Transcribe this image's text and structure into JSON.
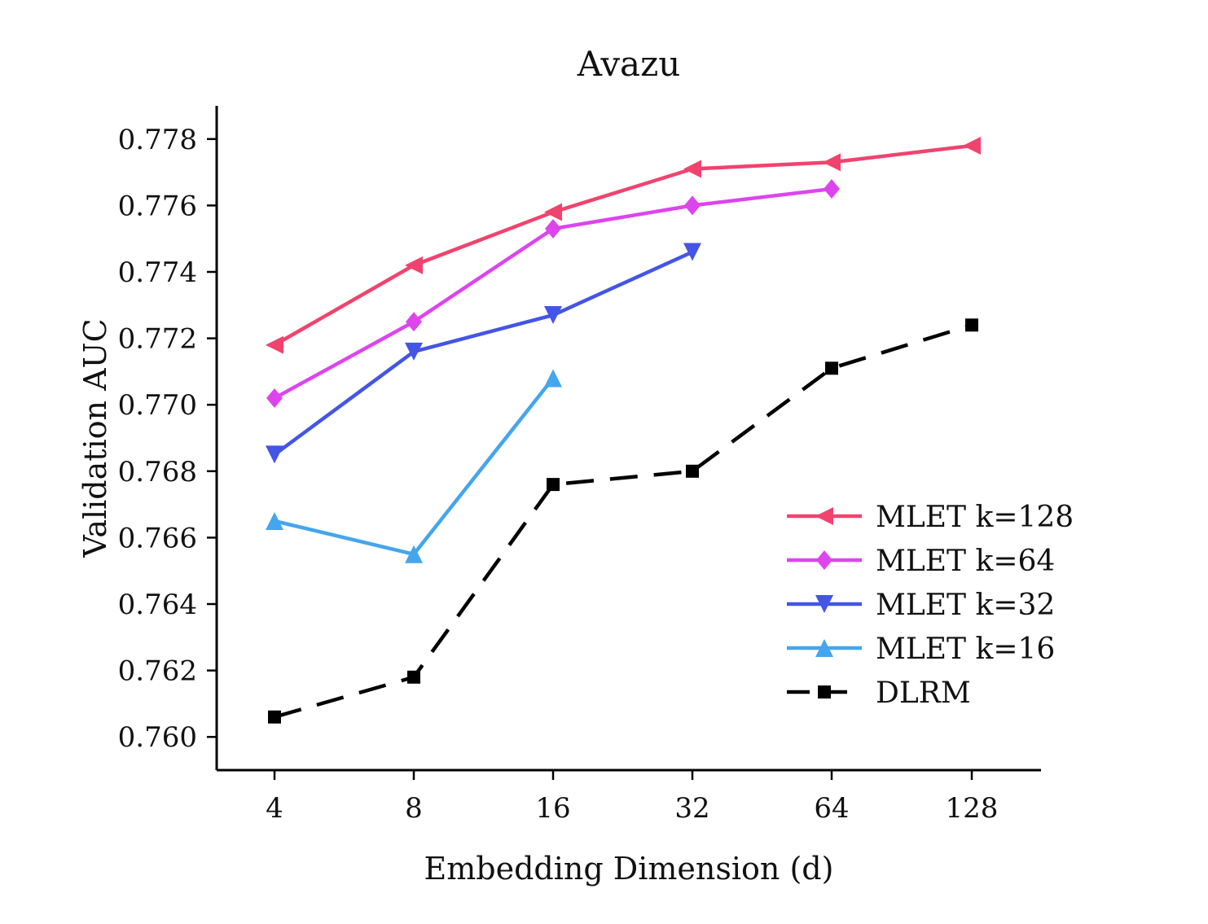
{
  "chart_data": {
    "type": "line",
    "title": "Avazu",
    "xlabel": "Embedding Dimension (d)",
    "ylabel": "Validation AUC",
    "categories": [
      "4",
      "8",
      "16",
      "32",
      "64",
      "128"
    ],
    "ylim": [
      0.759,
      0.779
    ],
    "yticks": [
      "0.760",
      "0.762",
      "0.764",
      "0.766",
      "0.768",
      "0.770",
      "0.772",
      "0.774",
      "0.776",
      "0.778"
    ],
    "grid": false,
    "legend_position": "right",
    "series": [
      {
        "name": "MLET k=128",
        "color": "#f0436e",
        "marker": "triangle-left",
        "dashed": false,
        "values": [
          0.7718,
          0.7742,
          0.7758,
          0.7771,
          0.7773,
          0.7778
        ]
      },
      {
        "name": "MLET k=64",
        "color": "#dd44ee",
        "marker": "diamond",
        "dashed": false,
        "values": [
          0.7702,
          0.7725,
          0.7753,
          0.776,
          0.7765,
          null
        ]
      },
      {
        "name": "MLET k=32",
        "color": "#4455e6",
        "marker": "triangle-down",
        "dashed": false,
        "values": [
          0.7685,
          0.7716,
          0.7727,
          0.7746,
          null,
          null
        ]
      },
      {
        "name": "MLET k=16",
        "color": "#45a5ee",
        "marker": "triangle-up",
        "dashed": false,
        "values": [
          0.7665,
          0.7655,
          0.7708,
          null,
          null,
          null
        ]
      },
      {
        "name": "DLRM",
        "color": "#000000",
        "marker": "square",
        "dashed": true,
        "values": [
          0.7606,
          0.7618,
          0.7676,
          0.768,
          0.7711,
          0.7724
        ]
      }
    ]
  }
}
